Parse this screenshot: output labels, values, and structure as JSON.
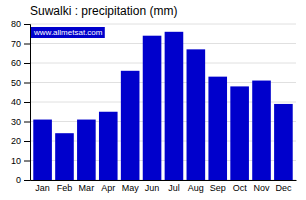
{
  "chart_data": {
    "type": "bar",
    "title": "Suwalki : precipitation (mm)",
    "categories": [
      "Jan",
      "Feb",
      "Mar",
      "Apr",
      "May",
      "Jun",
      "Jul",
      "Aug",
      "Sep",
      "Oct",
      "Nov",
      "Dec"
    ],
    "values": [
      31,
      24,
      31,
      35,
      56,
      74,
      76,
      67,
      53,
      48,
      51,
      39
    ],
    "color": "#0000CC",
    "ylim": [
      0,
      80
    ],
    "yticks": [
      0,
      10,
      20,
      30,
      40,
      50,
      60,
      70,
      80
    ],
    "grid": true,
    "annotations": [
      "www.allmetsat.com"
    ]
  }
}
